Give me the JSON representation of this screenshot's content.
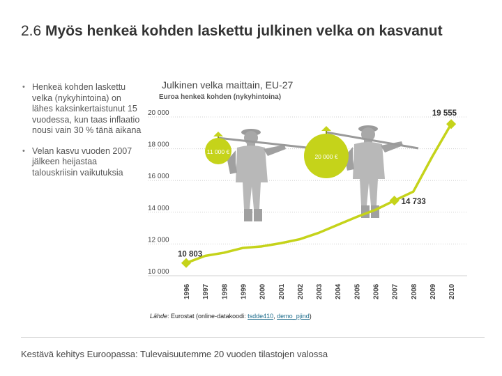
{
  "slide": {
    "number": "2.6",
    "title": "Myös henkeä kohden laskettu julkinen velka on kasvanut",
    "bullets": [
      "Henkeä kohden laskettu velka (nykyhintoina) on lähes kaksinkertaistunut 15 vuodessa, kun taas inflaatio nousi vain 30 % tänä aikana",
      "Velan kasvu vuoden 2007 jälkeen heijastaa talouskriisin vaikutuksia"
    ],
    "footer": "Kestävä kehitys Euroopassa: Tulevaisuutemme 20 vuoden tilastojen valossa"
  },
  "source": {
    "prefix": "Lähde",
    "middle": ": Eurostat (online-datakoodi: ",
    "link1": "tsdde410",
    "sep": ", ",
    "link2": "demo_pjind",
    "suffix": ")"
  },
  "chart_data": {
    "type": "line",
    "title": "Julkinen velka maittain, EU-27",
    "subtitle": "Euroa henkeä kohden (nykyhintoina)",
    "x": [
      "1996",
      "1997",
      "1998",
      "1999",
      "2000",
      "2001",
      "2002",
      "2003",
      "2004",
      "2005",
      "2006",
      "2007",
      "2008",
      "2009",
      "2010"
    ],
    "values": [
      10803,
      11250,
      11450,
      11750,
      11850,
      12050,
      12300,
      12700,
      13200,
      13700,
      14150,
      14733,
      15300,
      17500,
      19555
    ],
    "yticks": [
      "10 000",
      "12 000",
      "14 000",
      "16 000",
      "18 000",
      "20 000"
    ],
    "ylim": [
      10000,
      20000
    ],
    "annotations": [
      {
        "year": "1996",
        "label": "10 803"
      },
      {
        "year": "2007",
        "label": "14 733"
      },
      {
        "year": "2010",
        "label": "19 555"
      }
    ],
    "illustration_labels": [
      "11 000 €",
      "20 000 €"
    ],
    "line_color": "#c5d31a",
    "grid_color": "#d0d0d0"
  }
}
